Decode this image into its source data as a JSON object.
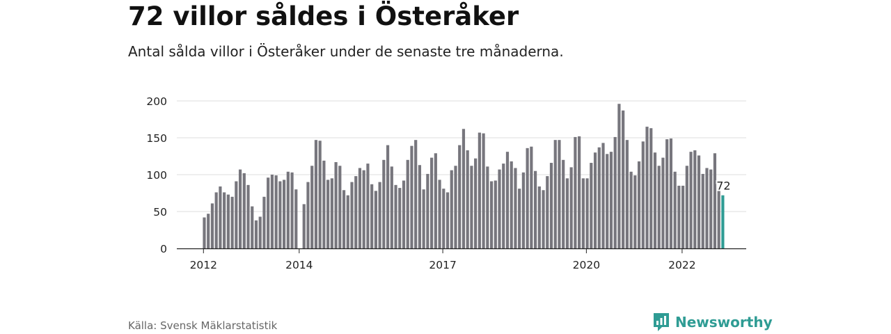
{
  "header": {
    "title": "72 villor såldes i Österåker",
    "subtitle": "Antal sålda villor i Österåker under de senaste tre månaderna."
  },
  "footer": {
    "source": "Källa: Svensk Mäklarstatistik",
    "brand": "Newsworthy",
    "brand_icon": "bar-chart-logo-icon"
  },
  "colors": {
    "bar": "#77767d",
    "highlight": "#2f9c94",
    "grid": "#dddddd",
    "axis": "#222222",
    "brand": "#2f9c94"
  },
  "chart_data": {
    "type": "bar",
    "title": "72 villor såldes i Österåker",
    "xlabel": "",
    "ylabel": "",
    "ylim": [
      0,
      200
    ],
    "yticks": [
      0,
      50,
      100,
      150,
      200
    ],
    "xtick_labels": [
      "2012",
      "2014",
      "2017",
      "2020",
      "2022"
    ],
    "x_start": "2012-01",
    "grid": "horizontal",
    "values": [
      42,
      47,
      61,
      76,
      84,
      76,
      73,
      70,
      91,
      107,
      102,
      86,
      57,
      38,
      43,
      70,
      96,
      100,
      99,
      91,
      93,
      104,
      103,
      80,
      0,
      60,
      90,
      112,
      147,
      146,
      119,
      93,
      95,
      117,
      112,
      79,
      72,
      90,
      98,
      109,
      106,
      115,
      87,
      78,
      90,
      120,
      140,
      111,
      86,
      82,
      92,
      120,
      139,
      147,
      113,
      80,
      101,
      123,
      129,
      93,
      81,
      76,
      106,
      112,
      140,
      162,
      133,
      112,
      122,
      157,
      156,
      111,
      91,
      92,
      107,
      115,
      131,
      118,
      109,
      81,
      103,
      136,
      138,
      105,
      84,
      79,
      98,
      116,
      147,
      147,
      120,
      95,
      110,
      151,
      152,
      95,
      95,
      116,
      130,
      137,
      143,
      128,
      131,
      151,
      196,
      187,
      147,
      104,
      99,
      118,
      145,
      165,
      163,
      130,
      112,
      123,
      148,
      149,
      104,
      85,
      85,
      112,
      131,
      133,
      126,
      101,
      109,
      107,
      129,
      80,
      72
    ],
    "highlight": {
      "label": "72",
      "value": 72
    }
  }
}
